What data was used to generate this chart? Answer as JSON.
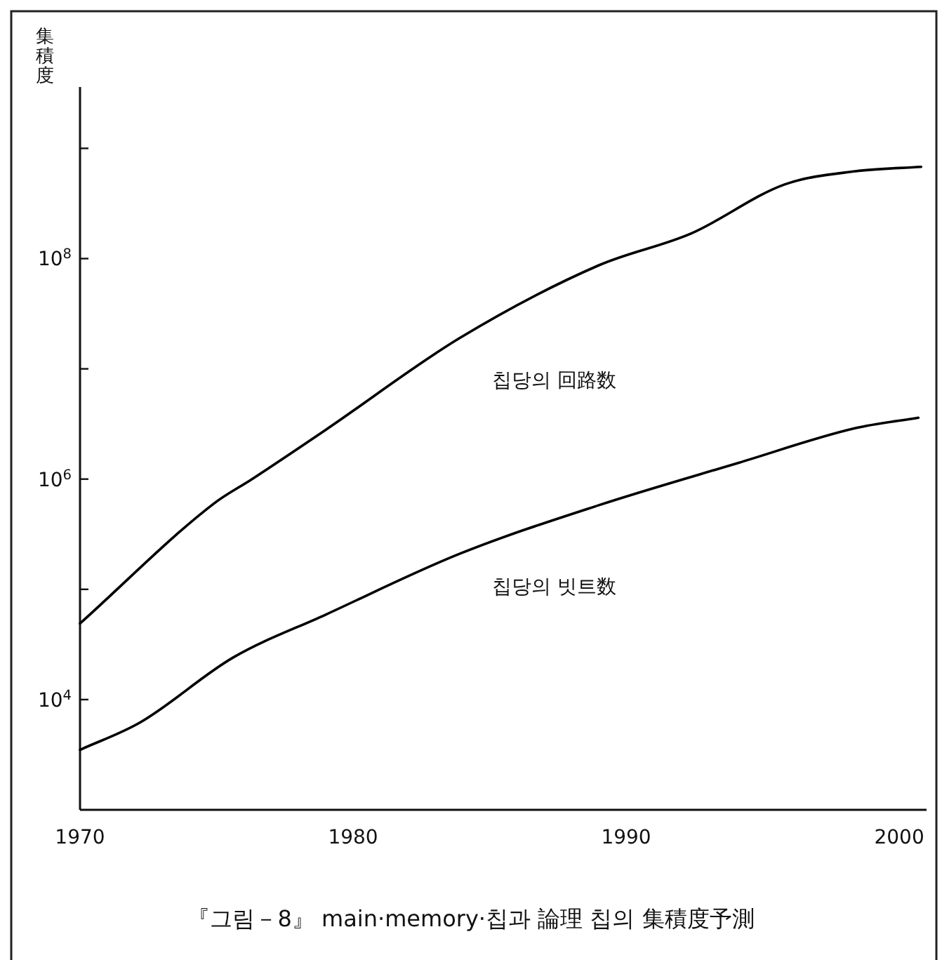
{
  "chart_data": {
    "type": "line",
    "title": "『그림－8』 main·memory·칩과 論理 칩의 集積度予測",
    "ylabel": "集積度",
    "series": [
      {
        "name": "칩당의 回路数",
        "color": "#000000",
        "x": [
          1970,
          1974.9,
          1976.3,
          1979,
          1983.9,
          1989,
          1992.4,
          1995.8,
          1998.4,
          2000.8
        ],
        "values": [
          49000,
          600000,
          1000000,
          2800000,
          19000000,
          87000000,
          170000000,
          470000000,
          620000000,
          680000000
        ]
      },
      {
        "name": "칩당의 빗트数",
        "color": "#000000",
        "x": [
          1970,
          1972.2,
          1975.6,
          1979,
          1983.9,
          1989,
          1994.1,
          1998.4,
          2000.7
        ],
        "values": [
          3500,
          6200,
          24000,
          59000,
          210000,
          580000,
          1400000,
          2900000,
          3600000
        ]
      }
    ],
    "xlim": [
      1970,
      2001
    ],
    "xticks": [
      1970,
      1980,
      1990,
      2000
    ],
    "ylim": [
      1000,
      3600000000
    ],
    "yticks": [
      {
        "value": 10000,
        "label": "10$^{4}$"
      },
      {
        "value": 100000,
        "label": null
      },
      {
        "value": 1000000,
        "label": "10$^{6}$"
      },
      {
        "value": 10000000,
        "label": null
      },
      {
        "value": 100000000,
        "label": "10$^{8}$"
      },
      {
        "value": 1000000000,
        "label": null
      }
    ],
    "log": "y",
    "grid": false,
    "marker": "none",
    "line_style": "solid"
  }
}
